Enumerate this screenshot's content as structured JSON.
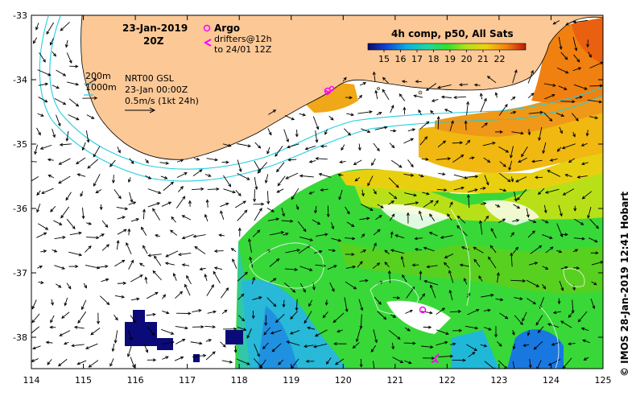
{
  "header": {
    "datetime": "23-Jan-2019",
    "hour": "20Z"
  },
  "legend": {
    "argo_label": "Argo",
    "drifters_line1": "drifters@12h",
    "drifters_line2": "to 24/01 12Z",
    "argo_color": "#ff00ff"
  },
  "colorbar": {
    "title": "4h comp, p50, All Sats",
    "ticks": [
      "15",
      "16",
      "17",
      "18",
      "19",
      "20",
      "21",
      "22"
    ]
  },
  "contour_legend": {
    "line1": "200m",
    "line2": "1000m",
    "color": "#22cfe0"
  },
  "currents_legend": {
    "line1": "NRT00 GSL",
    "line2": "23-Jan 00:00Z",
    "line3": "0.5m/s (1kt 24h)"
  },
  "credit": "© IMOS 28-Jan-2019 12:41 Hobart",
  "axes": {
    "x_ticks": [
      "114",
      "115",
      "116",
      "117",
      "118",
      "119",
      "120",
      "121",
      "122",
      "123",
      "124",
      "125"
    ],
    "y_ticks": [
      "-33",
      "-34",
      "-35",
      "-36",
      "-37",
      "-38"
    ]
  },
  "colors": {
    "land": "#fbc896",
    "ocean": "#ffffff",
    "contour": "#22cfe0"
  }
}
